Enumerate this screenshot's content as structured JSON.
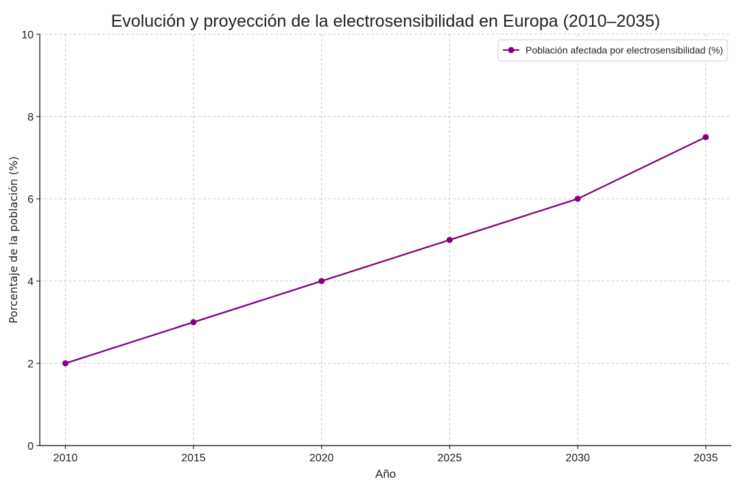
{
  "chart_data": {
    "type": "line",
    "title": "Evolución y proyección de la electrosensibilidad en Europa (2010–2035)",
    "xlabel": "Año",
    "ylabel": "Porcentaje de la población (%)",
    "x": [
      2010,
      2015,
      2020,
      2025,
      2030,
      2035
    ],
    "series": [
      {
        "name": "Población afectada por electrosensibilidad (%)",
        "values": [
          2,
          3,
          4,
          5,
          6,
          7.5
        ],
        "color": "#800080",
        "marker": "circle"
      }
    ],
    "xlim": [
      2009,
      2036
    ],
    "ylim": [
      0,
      10
    ],
    "xticks": [
      2010,
      2015,
      2020,
      2025,
      2030,
      2035
    ],
    "yticks": [
      0,
      2,
      4,
      6,
      8,
      10
    ],
    "grid": true,
    "legend_position": "top-right"
  }
}
